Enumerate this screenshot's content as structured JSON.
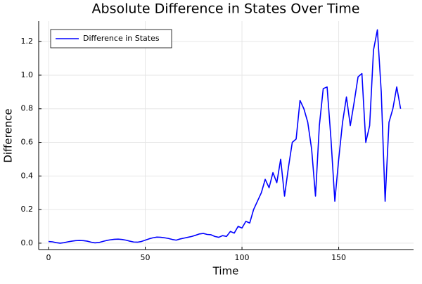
{
  "chart_data": {
    "type": "line",
    "title": "Absolute Difference in States Over Time",
    "x_label": "Time",
    "y_label": "Difference",
    "x": [
      0,
      2,
      4,
      6,
      8,
      10,
      12,
      14,
      16,
      18,
      20,
      22,
      24,
      26,
      28,
      30,
      32,
      34,
      36,
      38,
      40,
      42,
      44,
      46,
      48,
      50,
      52,
      54,
      56,
      58,
      60,
      62,
      64,
      66,
      68,
      70,
      72,
      74,
      76,
      78,
      80,
      82,
      84,
      86,
      88,
      90,
      92,
      94,
      96,
      98,
      100,
      102,
      104,
      106,
      108,
      110,
      112,
      114,
      116,
      118,
      120,
      122,
      124,
      126,
      128,
      130,
      132,
      134,
      136,
      138,
      140,
      142,
      144,
      146,
      148,
      150,
      152,
      154,
      156,
      158,
      160,
      162,
      164,
      166,
      168,
      170,
      172,
      174,
      176,
      178,
      180,
      182
    ],
    "series": [
      {
        "name": "Difference in States",
        "color": "#0000ff",
        "values": [
          0.01,
          0.008,
          0.003,
          0.0,
          0.003,
          0.008,
          0.012,
          0.015,
          0.016,
          0.015,
          0.012,
          0.006,
          0.002,
          0.004,
          0.01,
          0.016,
          0.02,
          0.023,
          0.024,
          0.022,
          0.018,
          0.012,
          0.007,
          0.006,
          0.01,
          0.018,
          0.026,
          0.032,
          0.036,
          0.035,
          0.032,
          0.028,
          0.022,
          0.018,
          0.025,
          0.03,
          0.035,
          0.04,
          0.047,
          0.055,
          0.058,
          0.052,
          0.05,
          0.04,
          0.035,
          0.045,
          0.04,
          0.07,
          0.06,
          0.1,
          0.09,
          0.13,
          0.12,
          0.2,
          0.25,
          0.3,
          0.38,
          0.33,
          0.42,
          0.36,
          0.5,
          0.28,
          0.45,
          0.6,
          0.62,
          0.85,
          0.8,
          0.72,
          0.56,
          0.28,
          0.7,
          0.92,
          0.93,
          0.62,
          0.25,
          0.5,
          0.72,
          0.87,
          0.7,
          0.84,
          0.99,
          1.01,
          0.6,
          0.7,
          1.15,
          1.27,
          0.9,
          0.25,
          0.72,
          0.8,
          0.93,
          0.8
        ]
      }
    ],
    "xlim": [
      -5.1,
      188.7
    ],
    "ylim": [
      -0.038,
      1.322
    ],
    "xticks": [
      0,
      50,
      100,
      150
    ],
    "yticks": [
      {
        "value": 0,
        "label": "0.0"
      },
      0.2,
      0.4,
      0.6,
      0.8,
      {
        "value": 1,
        "label": "1.0"
      },
      1.2
    ],
    "grid": true,
    "legend": "top-left"
  }
}
